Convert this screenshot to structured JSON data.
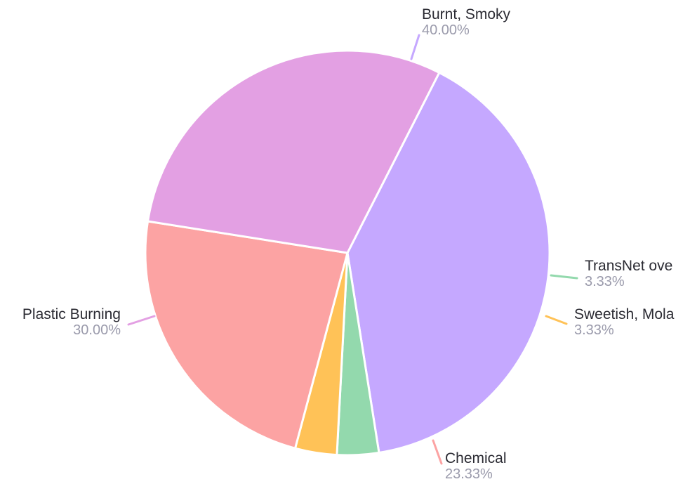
{
  "chart_data": {
    "type": "pie",
    "slices": [
      {
        "name": "Burnt, Smoky",
        "percent_label": "40.00%",
        "value": 40.0,
        "color": "#c5a8ff"
      },
      {
        "name": "TransNet ove",
        "percent_label": "3.33%",
        "value": 3.33,
        "color": "#93d9ad"
      },
      {
        "name": "Sweetish, Mola",
        "percent_label": "3.33%",
        "value": 3.33,
        "color": "#ffc257"
      },
      {
        "name": "Chemical",
        "percent_label": "23.33%",
        "value": 23.33,
        "color": "#fca3a3"
      },
      {
        "name": "Plastic Burning",
        "percent_label": "30.00%",
        "value": 30.0,
        "color": "#e3a0e3"
      }
    ],
    "start_angle_deg": 297,
    "direction": "clockwise",
    "labels": "outside-with-leader-lines",
    "legend": "none",
    "grid": false
  }
}
